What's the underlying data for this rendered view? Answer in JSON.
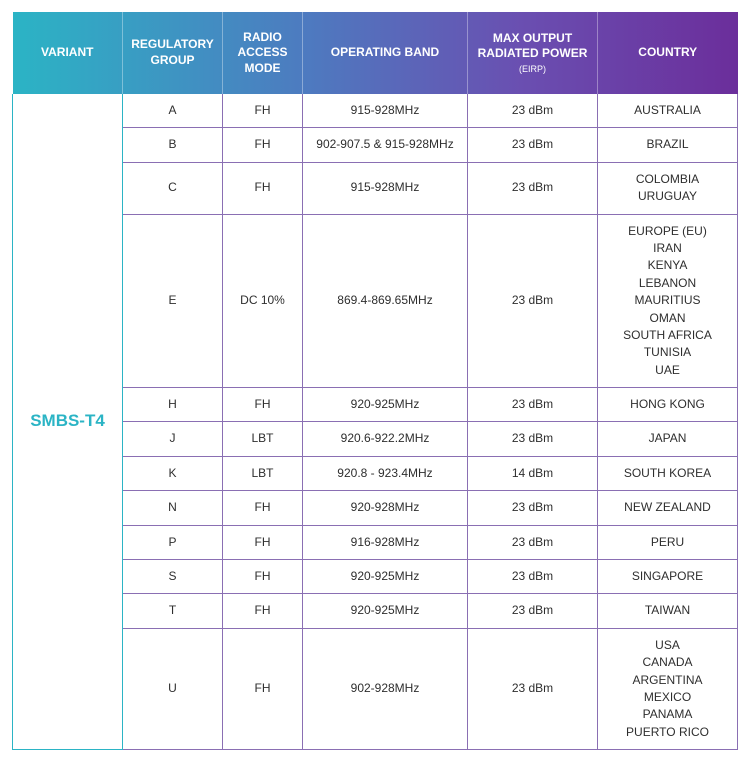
{
  "header": {
    "columns": [
      {
        "label": "VARIANT",
        "width": 110
      },
      {
        "label": "REGULATORY GROUP",
        "width": 100
      },
      {
        "label": "RADIO ACCESS MODE",
        "width": 80
      },
      {
        "label": "OPERATING BAND",
        "width": 165
      },
      {
        "label": "MAX OUTPUT RADIATED POWER",
        "sub": "(EIRP)",
        "width": 130
      },
      {
        "label": "COUNTRY",
        "width": 140
      }
    ],
    "gradient_colors": [
      "#2bb4c5",
      "#4d7bc0",
      "#6a4fb1",
      "#6b2e9b"
    ],
    "text_color": "#ffffff",
    "fontsize": 12
  },
  "variant": {
    "label": "SMBS-T4",
    "text_color": "#2bb4c5",
    "rowspan": 12
  },
  "body_fontsize": 12,
  "body_text_color": "#2e2e2e",
  "cell_border_color_primary": "#8a6fb3",
  "cell_border_color_variant": "#2bb4c5",
  "rows": [
    {
      "group": "A",
      "mode": "FH",
      "band": "915-928MHz",
      "power": "23 dBm",
      "countries": [
        "AUSTRALIA"
      ]
    },
    {
      "group": "B",
      "mode": "FH",
      "band": "902-907.5 & 915-928MHz",
      "power": "23 dBm",
      "countries": [
        "BRAZIL"
      ]
    },
    {
      "group": "C",
      "mode": "FH",
      "band": "915-928MHz",
      "power": "23 dBm",
      "countries": [
        "COLOMBIA",
        "URUGUAY"
      ]
    },
    {
      "group": "E",
      "mode": "DC 10%",
      "band": "869.4-869.65MHz",
      "power": "23 dBm",
      "countries": [
        "EUROPE (EU)",
        "IRAN",
        "KENYA",
        "LEBANON",
        "MAURITIUS",
        "OMAN",
        "SOUTH AFRICA",
        "TUNISIA",
        "UAE"
      ]
    },
    {
      "group": "H",
      "mode": "FH",
      "band": "920-925MHz",
      "power": "23 dBm",
      "countries": [
        "HONG KONG"
      ]
    },
    {
      "group": "J",
      "mode": "LBT",
      "band": "920.6-922.2MHz",
      "power": "23 dBm",
      "countries": [
        "JAPAN"
      ]
    },
    {
      "group": "K",
      "mode": "LBT",
      "band": "920.8 - 923.4MHz",
      "power": "14 dBm",
      "countries": [
        "SOUTH KOREA"
      ]
    },
    {
      "group": "N",
      "mode": "FH",
      "band": "920-928MHz",
      "power": "23 dBm",
      "countries": [
        "NEW ZEALAND"
      ]
    },
    {
      "group": "P",
      "mode": "FH",
      "band": "916-928MHz",
      "power": "23 dBm",
      "countries": [
        "PERU"
      ]
    },
    {
      "group": "S",
      "mode": "FH",
      "band": "920-925MHz",
      "power": "23 dBm",
      "countries": [
        "SINGAPORE"
      ]
    },
    {
      "group": "T",
      "mode": "FH",
      "band": "920-925MHz",
      "power": "23 dBm",
      "countries": [
        "TAIWAN"
      ]
    },
    {
      "group": "U",
      "mode": "FH",
      "band": "902-928MHz",
      "power": "23 dBm",
      "countries": [
        "USA",
        "CANADA",
        "ARGENTINA",
        "MEXICO",
        "PANAMA",
        "PUERTO RICO"
      ]
    }
  ]
}
